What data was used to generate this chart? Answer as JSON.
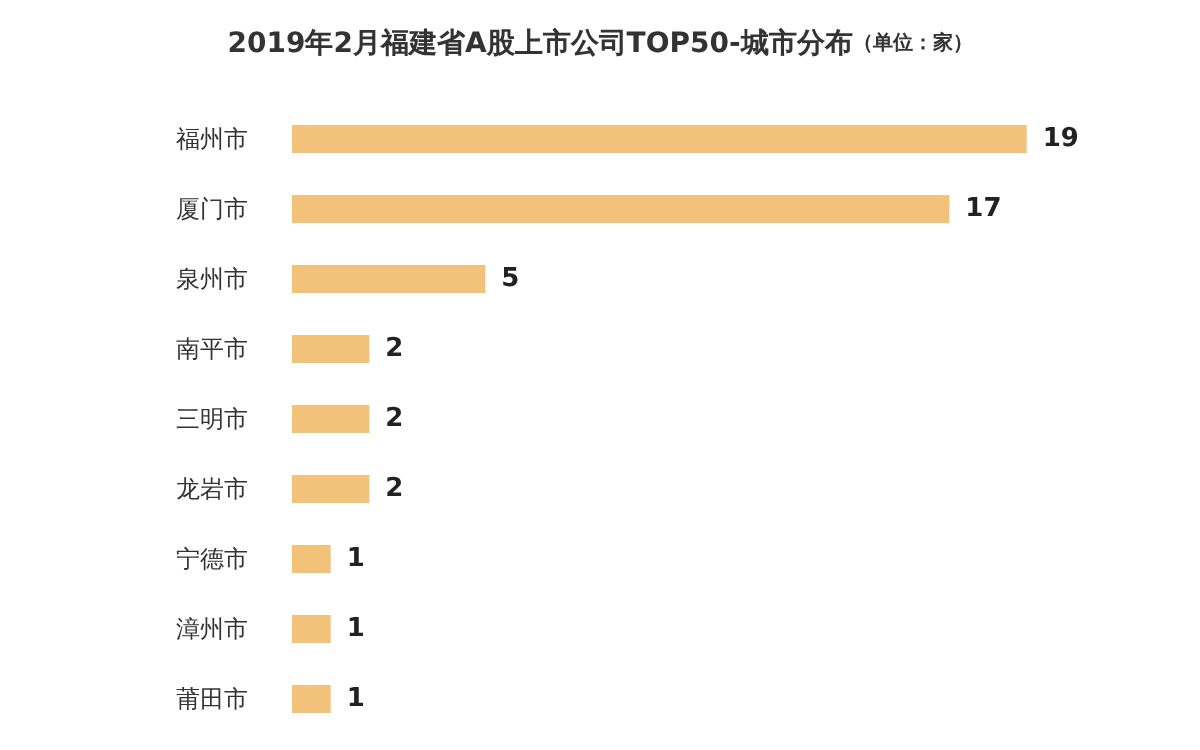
{
  "chart_data": {
    "type": "bar",
    "orientation": "horizontal",
    "title": "2019年2月福建省A股上市公司TOP50-城市分布",
    "subtitle": "（单位：家）",
    "categories": [
      "福州市",
      "厦门市",
      "泉州市",
      "南平市",
      "三明市",
      "龙岩市",
      "宁德市",
      "漳州市",
      "莆田市"
    ],
    "values": [
      19,
      17,
      5,
      2,
      2,
      2,
      1,
      1,
      1
    ],
    "color": "#f2c27a",
    "data_labels": true
  }
}
